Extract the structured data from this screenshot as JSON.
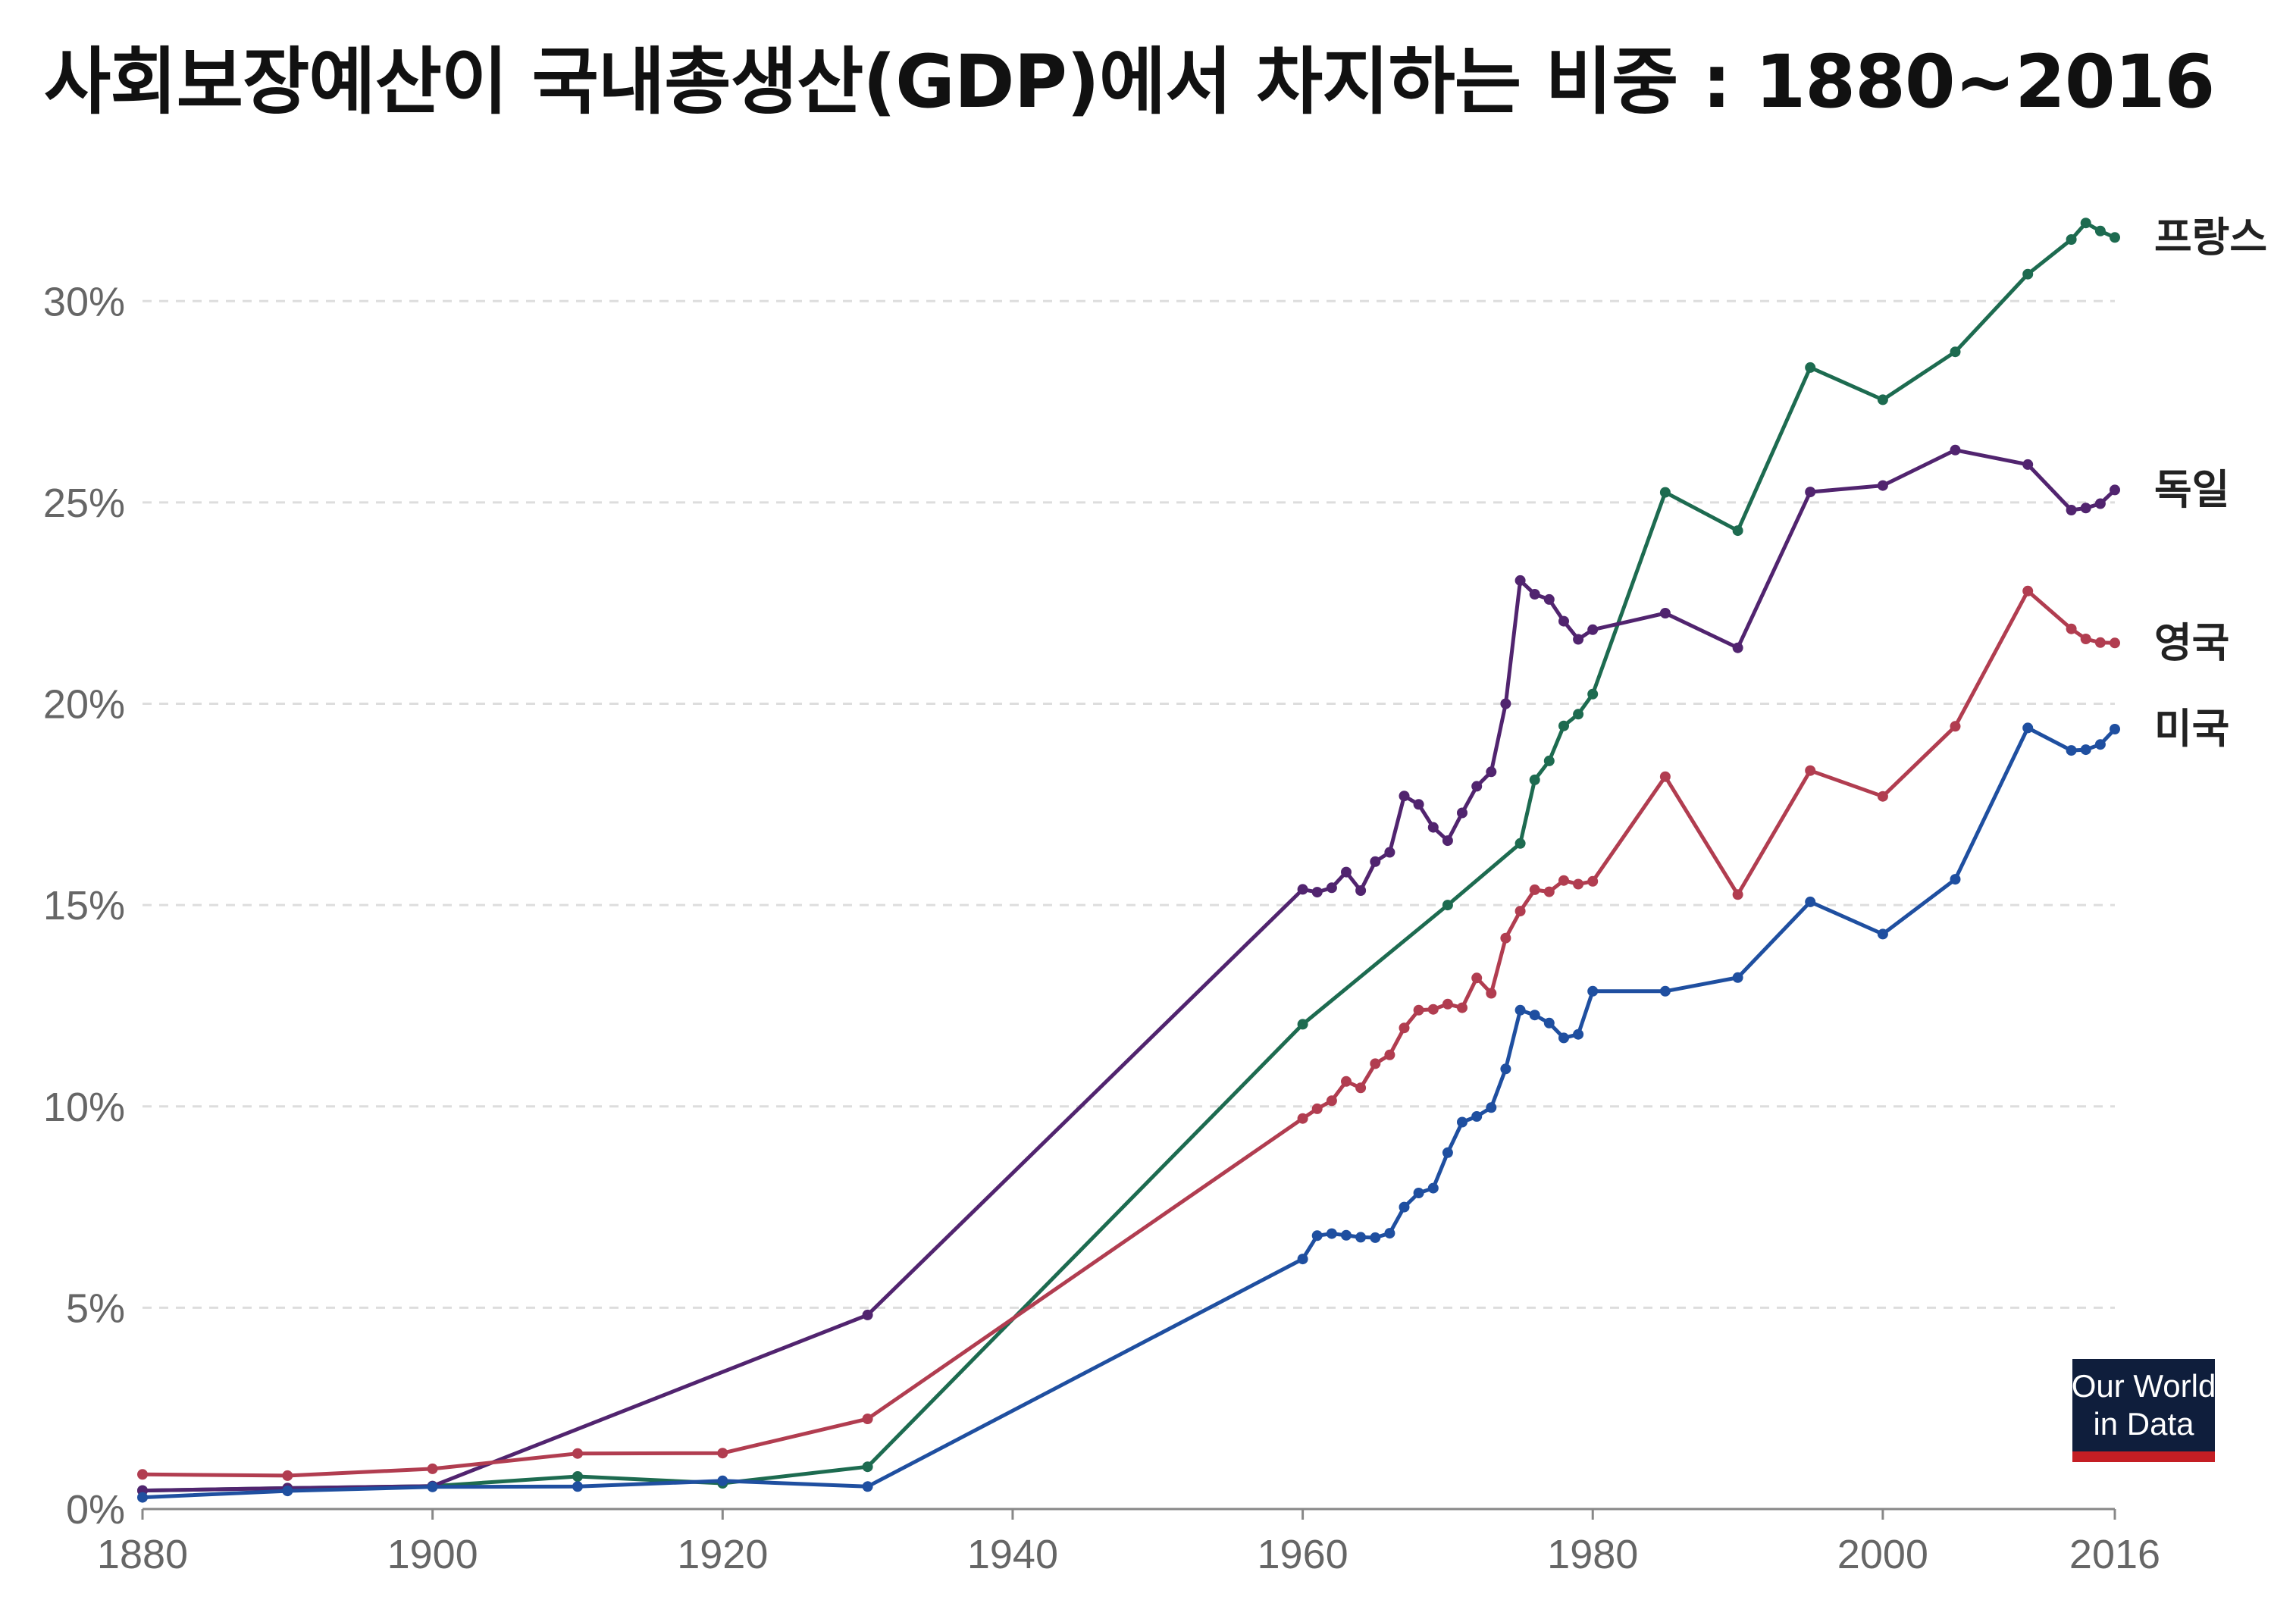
{
  "chart_data": {
    "type": "line",
    "title": "사회보장예산이 국내총생산(GDP)에서 차지하는 비중 : 1880~2016",
    "xlim": [
      1880,
      2016
    ],
    "ylim": [
      0,
      32
    ],
    "grid": true,
    "y_unit": "%",
    "x_ticks": [
      "1880",
      "1900",
      "1920",
      "1940",
      "1960",
      "1980",
      "2000",
      "2016"
    ],
    "y_ticks": [
      "0%",
      "5%",
      "10%",
      "15%",
      "20%",
      "25%",
      "30%"
    ],
    "legend_placement": "right end of lines",
    "series": [
      {
        "name": "프랑스",
        "color": "#1d6b50",
        "points": [
          [
            1880,
            0.46
          ],
          [
            1890,
            0.52
          ],
          [
            1900,
            0.57
          ],
          [
            1910,
            0.81
          ],
          [
            1920,
            0.64
          ],
          [
            1930,
            1.05
          ],
          [
            1960,
            12.04
          ],
          [
            1970,
            15.0
          ],
          [
            1975,
            16.53
          ],
          [
            1976,
            18.11
          ],
          [
            1977,
            18.58
          ],
          [
            1978,
            19.45
          ],
          [
            1979,
            19.74
          ],
          [
            1980,
            20.24
          ],
          [
            1985,
            25.25
          ],
          [
            1990,
            24.3
          ],
          [
            1995,
            28.35
          ],
          [
            2000,
            27.55
          ],
          [
            2005,
            28.74
          ],
          [
            2010,
            30.67
          ],
          [
            2013,
            31.53
          ],
          [
            2014,
            31.94
          ],
          [
            2015,
            31.74
          ],
          [
            2016,
            31.58
          ]
        ]
      },
      {
        "name": "독일",
        "color": "#51246f",
        "points": [
          [
            1880,
            0.46
          ],
          [
            1890,
            0.52
          ],
          [
            1900,
            0.57
          ],
          [
            1930,
            4.82
          ],
          [
            1960,
            15.39
          ],
          [
            1961,
            15.32
          ],
          [
            1962,
            15.43
          ],
          [
            1963,
            15.82
          ],
          [
            1964,
            15.36
          ],
          [
            1965,
            16.08
          ],
          [
            1966,
            16.31
          ],
          [
            1967,
            17.71
          ],
          [
            1968,
            17.5
          ],
          [
            1969,
            16.93
          ],
          [
            1970,
            16.6
          ],
          [
            1971,
            17.29
          ],
          [
            1972,
            17.95
          ],
          [
            1973,
            18.31
          ],
          [
            1974,
            20.0
          ],
          [
            1975,
            23.06
          ],
          [
            1976,
            22.72
          ],
          [
            1977,
            22.59
          ],
          [
            1978,
            22.05
          ],
          [
            1979,
            21.6
          ],
          [
            1980,
            21.84
          ],
          [
            1985,
            22.25
          ],
          [
            1990,
            21.39
          ],
          [
            1995,
            25.26
          ],
          [
            2000,
            25.42
          ],
          [
            2005,
            26.3
          ],
          [
            2010,
            25.94
          ],
          [
            2013,
            24.81
          ],
          [
            2014,
            24.86
          ],
          [
            2015,
            24.97
          ],
          [
            2016,
            25.31
          ]
        ]
      },
      {
        "name": "영국",
        "color": "#b13d50",
        "points": [
          [
            1880,
            0.86
          ],
          [
            1890,
            0.83
          ],
          [
            1900,
            1.0
          ],
          [
            1910,
            1.38
          ],
          [
            1920,
            1.39
          ],
          [
            1930,
            2.24
          ],
          [
            1960,
            9.7
          ],
          [
            1961,
            9.94
          ],
          [
            1962,
            10.14
          ],
          [
            1963,
            10.62
          ],
          [
            1964,
            10.46
          ],
          [
            1965,
            11.06
          ],
          [
            1966,
            11.28
          ],
          [
            1967,
            11.95
          ],
          [
            1968,
            12.39
          ],
          [
            1969,
            12.41
          ],
          [
            1970,
            12.54
          ],
          [
            1971,
            12.45
          ],
          [
            1972,
            13.19
          ],
          [
            1973,
            12.81
          ],
          [
            1974,
            14.18
          ],
          [
            1975,
            14.85
          ],
          [
            1976,
            15.38
          ],
          [
            1977,
            15.33
          ],
          [
            1978,
            15.61
          ],
          [
            1979,
            15.52
          ],
          [
            1980,
            15.59
          ],
          [
            1985,
            18.19
          ],
          [
            1990,
            15.26
          ],
          [
            1995,
            18.34
          ],
          [
            2000,
            17.7
          ],
          [
            2005,
            19.44
          ],
          [
            2010,
            22.8
          ],
          [
            2013,
            21.86
          ],
          [
            2014,
            21.61
          ],
          [
            2015,
            21.52
          ],
          [
            2016,
            21.51
          ]
        ]
      },
      {
        "name": "미국",
        "color": "#1f4fa0",
        "points": [
          [
            1880,
            0.29
          ],
          [
            1890,
            0.45
          ],
          [
            1900,
            0.55
          ],
          [
            1910,
            0.56
          ],
          [
            1920,
            0.7
          ],
          [
            1930,
            0.56
          ],
          [
            1960,
            6.21
          ],
          [
            1961,
            6.79
          ],
          [
            1962,
            6.84
          ],
          [
            1963,
            6.8
          ],
          [
            1964,
            6.75
          ],
          [
            1965,
            6.74
          ],
          [
            1966,
            6.85
          ],
          [
            1967,
            7.5
          ],
          [
            1968,
            7.85
          ],
          [
            1969,
            7.97
          ],
          [
            1970,
            8.85
          ],
          [
            1971,
            9.61
          ],
          [
            1972,
            9.75
          ],
          [
            1973,
            9.97
          ],
          [
            1974,
            10.93
          ],
          [
            1975,
            12.39
          ],
          [
            1976,
            12.27
          ],
          [
            1977,
            12.07
          ],
          [
            1978,
            11.7
          ],
          [
            1979,
            11.79
          ],
          [
            1980,
            12.86
          ],
          [
            1985,
            12.86
          ],
          [
            1990,
            13.2
          ],
          [
            1995,
            15.08
          ],
          [
            2000,
            14.28
          ],
          [
            2005,
            15.64
          ],
          [
            2010,
            19.4
          ],
          [
            2013,
            18.84
          ],
          [
            2014,
            18.86
          ],
          [
            2015,
            18.99
          ],
          [
            2016,
            19.37
          ]
        ]
      }
    ]
  },
  "logo": {
    "line1": "Our World",
    "line2": "in Data"
  }
}
